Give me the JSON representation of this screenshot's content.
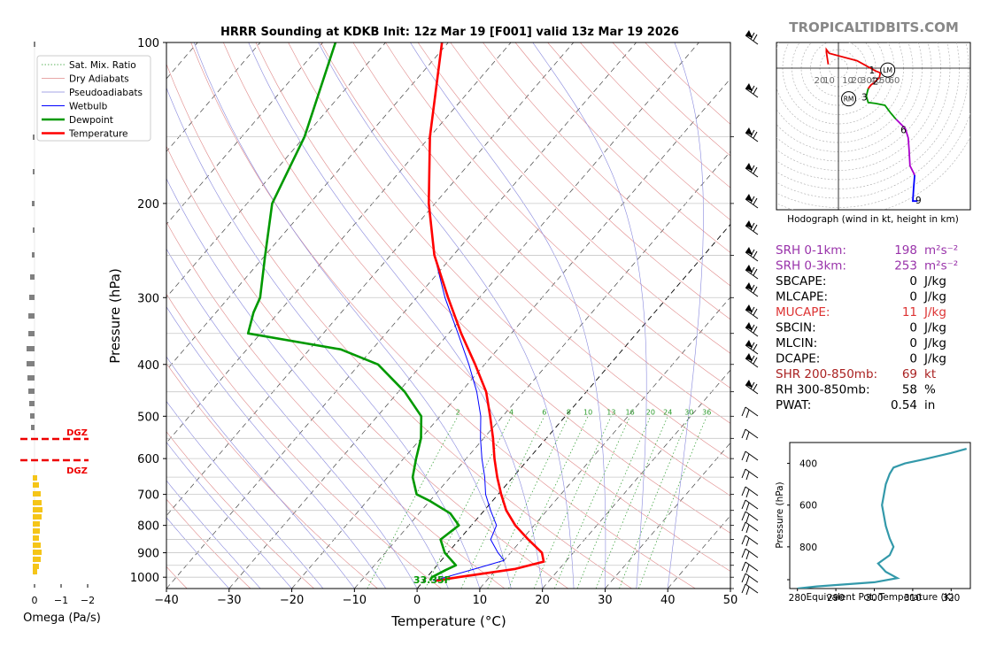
{
  "chart_data": [
    {
      "type": "line",
      "subtype": "skew-t log-p sounding",
      "title": "HRRR Sounding at KDKB Init: 12z Mar 19 [F001] valid 13z Mar 19 2026",
      "xlabel": "Temperature (°C)",
      "ylabel": "Pressure (hPa)",
      "xlim": [
        -40,
        50
      ],
      "ylim": [
        1050,
        100
      ],
      "y_scale": "log",
      "x_ticks": [
        "−40",
        "−30",
        "−20",
        "−10",
        "0",
        "10",
        "20",
        "30",
        "40",
        "50"
      ],
      "y_ticks": [
        "100",
        "200",
        "300",
        "400",
        "500",
        "600",
        "700",
        "800",
        "900",
        "1000"
      ],
      "legend": [
        "Sat. Mix. Ratio",
        "Dry Adiabats",
        "Pseudoadiabats",
        "Wetbulb",
        "Dewpoint",
        "Temperature"
      ],
      "legend_placement": "top-left",
      "mixing_ratio_labels": [
        "2",
        "4",
        "6",
        "8",
        "10",
        "13",
        "16",
        "20",
        "24",
        "30",
        "36"
      ],
      "surface_dewpoint_label": "33.35F",
      "series": [
        {
          "name": "Temperature",
          "color": "#ff0000",
          "points": [
            [
              1015,
              2
            ],
            [
              1000,
              5
            ],
            [
              965,
              13
            ],
            [
              935,
              16.5
            ],
            [
              900,
              15
            ],
            [
              850,
              11
            ],
            [
              800,
              7
            ],
            [
              750,
              3.5
            ],
            [
              700,
              0.5
            ],
            [
              650,
              -2.5
            ],
            [
              600,
              -5.5
            ],
            [
              550,
              -8.5
            ],
            [
              500,
              -12
            ],
            [
              450,
              -16
            ],
            [
              400,
              -21.5
            ],
            [
              350,
              -28
            ],
            [
              300,
              -35
            ],
            [
              250,
              -43
            ],
            [
              200,
              -51
            ],
            [
              150,
              -60
            ],
            [
              100,
              -71
            ]
          ]
        },
        {
          "name": "Dewpoint",
          "color": "#009900",
          "points": [
            [
              1015,
              1
            ],
            [
              1000,
              0.8
            ],
            [
              970,
              2
            ],
            [
              950,
              3
            ],
            [
              900,
              -0.5
            ],
            [
              850,
              -3
            ],
            [
              800,
              -2
            ],
            [
              760,
              -5
            ],
            [
              720,
              -10
            ],
            [
              700,
              -13
            ],
            [
              650,
              -16
            ],
            [
              600,
              -18
            ],
            [
              550,
              -20
            ],
            [
              500,
              -23
            ],
            [
              450,
              -29
            ],
            [
              400,
              -37
            ],
            [
              375,
              -45
            ],
            [
              350,
              -62
            ],
            [
              320,
              -64
            ],
            [
              300,
              -65
            ],
            [
              250,
              -70
            ],
            [
              200,
              -76
            ],
            [
              150,
              -80
            ],
            [
              100,
              -88
            ]
          ]
        },
        {
          "name": "Wetbulb",
          "color": "#0000ff",
          "points": [
            [
              1015,
              1.5
            ],
            [
              1000,
              3
            ],
            [
              960,
              7
            ],
            [
              930,
              10
            ],
            [
              900,
              8
            ],
            [
              850,
              5
            ],
            [
              800,
              4
            ],
            [
              750,
              1
            ],
            [
              700,
              -2
            ],
            [
              650,
              -4.5
            ],
            [
              600,
              -7.5
            ],
            [
              550,
              -10.5
            ],
            [
              500,
              -13.5
            ],
            [
              450,
              -17.5
            ],
            [
              400,
              -22.5
            ],
            [
              350,
              -28.5
            ],
            [
              300,
              -35.5
            ],
            [
              250,
              -43
            ],
            [
              200,
              -51
            ],
            [
              150,
              -60
            ],
            [
              100,
              -71
            ]
          ]
        }
      ]
    },
    {
      "type": "line",
      "title": "Hodograph (wind in kt, height in km)",
      "ring_labels": [
        "20",
        "10",
        "10",
        "20",
        "30",
        "40",
        "50",
        "60"
      ],
      "marker_labels": [
        "1",
        "2",
        "3",
        "6",
        "9"
      ],
      "storm_markers": [
        "LM",
        "RM"
      ]
    },
    {
      "type": "bar",
      "xlabel": "Omega (Pa/s)",
      "x_ticks": [
        "0",
        "−1",
        "−2"
      ],
      "annotations": [
        "DGZ",
        "DGZ"
      ],
      "colors": {
        "weak": "#808080",
        "upward": "#f5c518"
      }
    },
    {
      "type": "line",
      "xlabel": "Equivalent Pot. Temperature (K)",
      "ylabel": "Pressure (hPa)",
      "xlim": [
        278,
        325
      ],
      "ylim": [
        1000,
        300
      ],
      "x_ticks": [
        "280",
        "290",
        "300",
        "310",
        "320"
      ],
      "y_ticks": [
        "400",
        "600",
        "800"
      ],
      "series": [
        {
          "name": "",
          "color": "#3399aa",
          "points": [
            [
              1000,
              280
            ],
            [
              990,
              285
            ],
            [
              970,
              300
            ],
            [
              950,
              306
            ],
            [
              920,
              303
            ],
            [
              880,
              301
            ],
            [
              840,
              304
            ],
            [
              800,
              305
            ],
            [
              760,
              304
            ],
            [
              700,
              303
            ],
            [
              600,
              302
            ],
            [
              500,
              303
            ],
            [
              450,
              304
            ],
            [
              420,
              305
            ],
            [
              400,
              308
            ],
            [
              380,
              313
            ],
            [
              350,
              320
            ],
            [
              330,
              324
            ]
          ]
        }
      ]
    }
  ],
  "watermark": "TROPICALTIDBITS.COM",
  "indices": [
    {
      "label": "SRH 0-1km:",
      "value": "198",
      "unit": "m²s⁻²",
      "color": "#9933aa"
    },
    {
      "label": "SRH 0-3km:",
      "value": "253",
      "unit": "m²s⁻²",
      "color": "#9933aa"
    },
    {
      "label": "SBCAPE:",
      "value": "0",
      "unit": "J/kg",
      "color": "#000000"
    },
    {
      "label": "MLCAPE:",
      "value": "0",
      "unit": "J/kg",
      "color": "#000000"
    },
    {
      "label": "MUCAPE:",
      "value": "11",
      "unit": "J/kg",
      "color": "#dd3333"
    },
    {
      "label": "SBCIN:",
      "value": "0",
      "unit": "J/kg",
      "color": "#000000"
    },
    {
      "label": "MLCIN:",
      "value": "0",
      "unit": "J/kg",
      "color": "#000000"
    },
    {
      "label": "DCAPE:",
      "value": "0",
      "unit": "J/kg",
      "color": "#000000"
    },
    {
      "label": "SHR 200-850mb:",
      "value": "69",
      "unit": "kt",
      "color": "#aa2222"
    },
    {
      "label": "RH 300-850mb:",
      "value": "58",
      "unit": "%",
      "color": "#000000"
    },
    {
      "label": "PWAT:",
      "value": "0.54",
      "unit": "in",
      "color": "#000000"
    }
  ]
}
